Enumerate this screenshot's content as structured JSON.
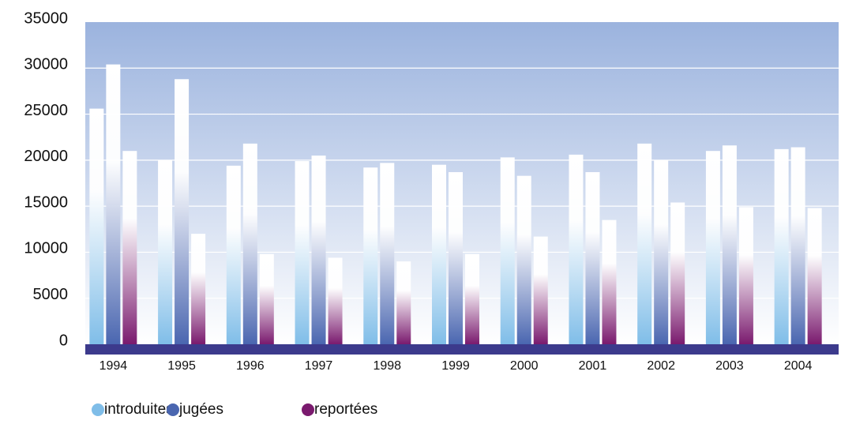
{
  "chart_data": {
    "type": "bar",
    "categories": [
      "1994",
      "1995",
      "1996",
      "1997",
      "1998",
      "1999",
      "2000",
      "2001",
      "2002",
      "2003",
      "2004"
    ],
    "series": [
      {
        "name": "introduites",
        "color": "#7fbde8",
        "values": [
          25600,
          20000,
          19400,
          19900,
          19200,
          19500,
          20300,
          20600,
          21800,
          21000,
          21200
        ]
      },
      {
        "name": "jugées",
        "color": "#4a66b0",
        "values": [
          30400,
          28800,
          21800,
          20500,
          19700,
          18700,
          18300,
          18700,
          20000,
          21600,
          21400
        ]
      },
      {
        "name": "reportées",
        "color": "#7a1a6e",
        "values": [
          21000,
          12000,
          9800,
          9400,
          9000,
          9800,
          11700,
          13500,
          15400,
          14900,
          14800
        ]
      }
    ],
    "ylim": [
      0,
      35000
    ],
    "yticks": [
      0,
      5000,
      10000,
      15000,
      20000,
      25000,
      30000,
      35000
    ],
    "grid": true
  }
}
